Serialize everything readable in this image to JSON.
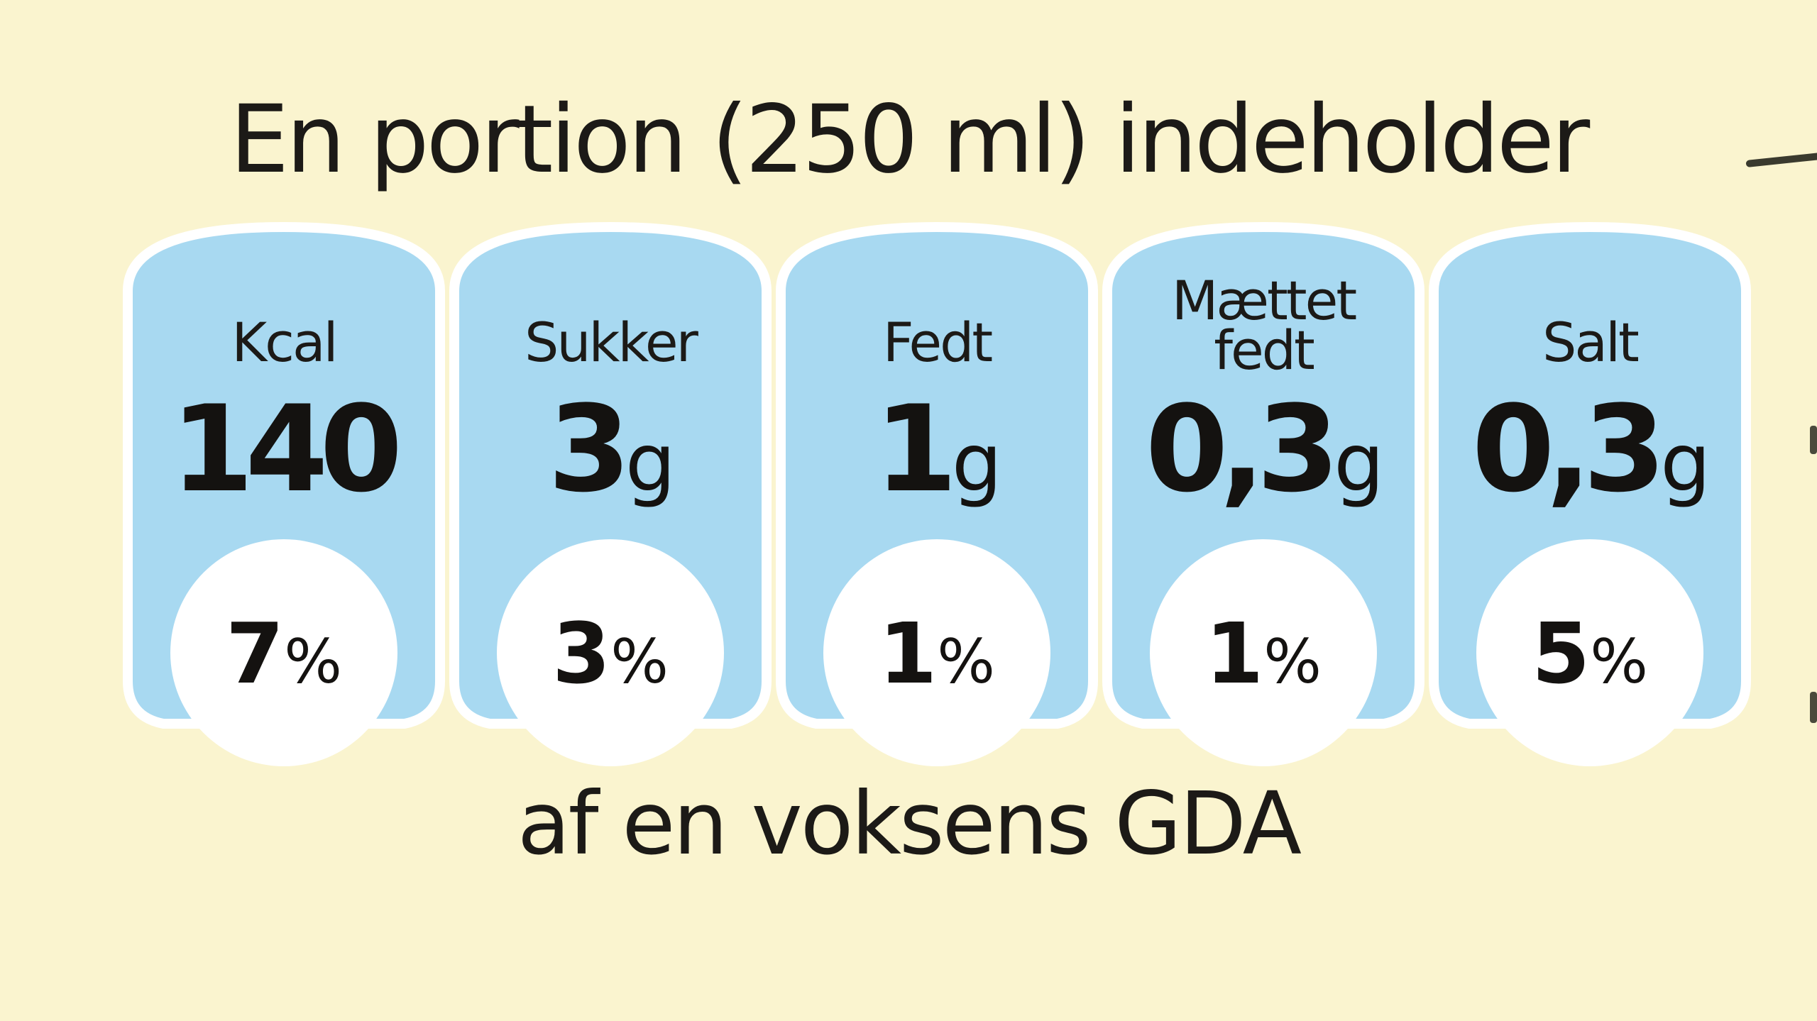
{
  "header": {
    "title": "En portion (250 ml) indeholder"
  },
  "footer": {
    "text": "af en voksens GDA"
  },
  "colors": {
    "background": "#FAF4CF",
    "panel_fill": "#A8D9F1",
    "panel_outline": "#FFFFFF",
    "text": "#1C1A17"
  },
  "nutrients": [
    {
      "label": "Kcal",
      "amount": "140",
      "unit": "",
      "percent": "7",
      "percent_sign": "%"
    },
    {
      "label": "Sukker",
      "amount": "3",
      "unit": "g",
      "percent": "3",
      "percent_sign": "%"
    },
    {
      "label": "Fedt",
      "amount": "1",
      "unit": "g",
      "percent": "1",
      "percent_sign": "%"
    },
    {
      "label_line1": "Mættet",
      "label_line2": "fedt",
      "amount": "0,3",
      "unit": "g",
      "percent": "1",
      "percent_sign": "%"
    },
    {
      "label": "Salt",
      "amount": "0,3",
      "unit": "g",
      "percent": "5",
      "percent_sign": "%"
    }
  ]
}
